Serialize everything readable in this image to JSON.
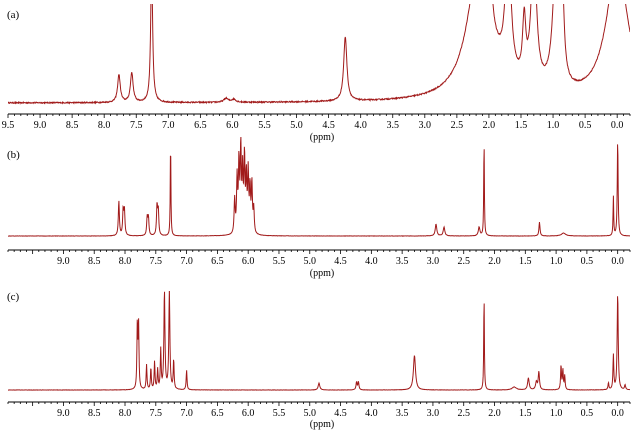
{
  "chart_data": [
    {
      "type": "line",
      "panel_label": "(a)",
      "xlabel": "(ppm)",
      "xlim": [
        9.5,
        -0.2
      ],
      "xticks": [
        "9.5",
        "9.0",
        "8.5",
        "8.0",
        "7.5",
        "7.0",
        "6.5",
        "6.0",
        "5.5",
        "5.0",
        "4.5",
        "4.0",
        "3.5",
        "3.0",
        "2.5",
        "2.0",
        "1.5",
        "1.0",
        "0.5",
        "0.0"
      ],
      "color": "#a11a1a",
      "noise": 0.6,
      "peaks": [
        {
          "x": 7.77,
          "h": 28,
          "w": 0.025
        },
        {
          "x": 7.57,
          "h": 30,
          "w": 0.025
        },
        {
          "x": 7.26,
          "h": 140,
          "w": 0.018
        },
        {
          "x": 6.1,
          "h": 4,
          "w": 0.04
        },
        {
          "x": 5.98,
          "h": 3,
          "w": 0.04
        },
        {
          "x": 4.24,
          "h": 65,
          "w": 0.03
        },
        {
          "x": 2.15,
          "h": 140,
          "w": 0.22
        },
        {
          "x": 2.03,
          "h": 45,
          "w": 0.03
        },
        {
          "x": 1.98,
          "h": 45,
          "w": 0.03
        },
        {
          "x": 1.7,
          "h": 140,
          "w": 0.05
        },
        {
          "x": 1.45,
          "h": 60,
          "w": 0.03
        },
        {
          "x": 1.3,
          "h": 140,
          "w": 0.05
        },
        {
          "x": 0.95,
          "h": 140,
          "w": 0.06
        },
        {
          "x": 0.85,
          "h": 70,
          "w": 0.03
        },
        {
          "x": 0.0,
          "h": 140,
          "w": 0.2
        }
      ]
    },
    {
      "type": "line",
      "panel_label": "(b)",
      "xlabel": "(ppm)",
      "xlim": [
        9.9,
        -0.2
      ],
      "xticks": [
        "9.0",
        "8.5",
        "8.0",
        "7.5",
        "7.0",
        "6.5",
        "6.0",
        "5.5",
        "5.0",
        "4.5",
        "4.0",
        "3.5",
        "3.0",
        "2.5",
        "2.0",
        "1.5",
        "1.0",
        "0.5",
        "0.0"
      ],
      "color": "#a11a1a",
      "noise": 0.15,
      "peaks": [
        {
          "x": 8.1,
          "h": 35,
          "w": 0.01
        },
        {
          "x": 8.03,
          "h": 25,
          "w": 0.01
        },
        {
          "x": 8.01,
          "h": 25,
          "w": 0.01
        },
        {
          "x": 7.64,
          "h": 18,
          "w": 0.01
        },
        {
          "x": 7.62,
          "h": 18,
          "w": 0.01
        },
        {
          "x": 7.48,
          "h": 30,
          "w": 0.01
        },
        {
          "x": 7.46,
          "h": 25,
          "w": 0.01
        },
        {
          "x": 7.26,
          "h": 98,
          "w": 0.006
        },
        {
          "x": 6.22,
          "h": 35,
          "w": 0.01
        },
        {
          "x": 6.18,
          "h": 55,
          "w": 0.01
        },
        {
          "x": 6.15,
          "h": 70,
          "w": 0.01
        },
        {
          "x": 6.12,
          "h": 85,
          "w": 0.01
        },
        {
          "x": 6.09,
          "h": 60,
          "w": 0.01
        },
        {
          "x": 6.06,
          "h": 75,
          "w": 0.01
        },
        {
          "x": 6.03,
          "h": 55,
          "w": 0.01
        },
        {
          "x": 6.0,
          "h": 60,
          "w": 0.01
        },
        {
          "x": 5.97,
          "h": 45,
          "w": 0.01
        },
        {
          "x": 5.94,
          "h": 50,
          "w": 0.01
        },
        {
          "x": 5.91,
          "h": 25,
          "w": 0.01
        },
        {
          "x": 2.95,
          "h": 12,
          "w": 0.015
        },
        {
          "x": 2.82,
          "h": 9,
          "w": 0.015
        },
        {
          "x": 2.25,
          "h": 9,
          "w": 0.015
        },
        {
          "x": 2.17,
          "h": 98,
          "w": 0.006
        },
        {
          "x": 1.27,
          "h": 14,
          "w": 0.01
        },
        {
          "x": 0.88,
          "h": 3,
          "w": 0.04
        },
        {
          "x": 0.07,
          "h": 40,
          "w": 0.006
        },
        {
          "x": 0.0,
          "h": 98,
          "w": 0.008
        }
      ]
    },
    {
      "type": "line",
      "panel_label": "(c)",
      "xlabel": "(ppm)",
      "xlim": [
        9.9,
        -0.2
      ],
      "xticks": [
        "9.0",
        "8.5",
        "8.0",
        "7.5",
        "7.0",
        "6.5",
        "6.0",
        "5.5",
        "5.0",
        "4.5",
        "4.0",
        "3.5",
        "3.0",
        "2.5",
        "2.0",
        "1.5",
        "1.0",
        "0.5",
        "0.0"
      ],
      "color": "#a11a1a",
      "noise": 0.15,
      "peaks": [
        {
          "x": 7.8,
          "h": 65,
          "w": 0.008
        },
        {
          "x": 7.78,
          "h": 65,
          "w": 0.008
        },
        {
          "x": 7.65,
          "h": 25,
          "w": 0.008
        },
        {
          "x": 7.58,
          "h": 22,
          "w": 0.008
        },
        {
          "x": 7.52,
          "h": 28,
          "w": 0.008
        },
        {
          "x": 7.47,
          "h": 20,
          "w": 0.008
        },
        {
          "x": 7.42,
          "h": 40,
          "w": 0.008
        },
        {
          "x": 7.36,
          "h": 100,
          "w": 0.01
        },
        {
          "x": 7.28,
          "h": 100,
          "w": 0.01
        },
        {
          "x": 7.21,
          "h": 30,
          "w": 0.008
        },
        {
          "x": 7.0,
          "h": 20,
          "w": 0.008
        },
        {
          "x": 4.85,
          "h": 7,
          "w": 0.015
        },
        {
          "x": 4.24,
          "h": 8,
          "w": 0.01
        },
        {
          "x": 4.21,
          "h": 8,
          "w": 0.01
        },
        {
          "x": 3.3,
          "h": 35,
          "w": 0.02
        },
        {
          "x": 2.17,
          "h": 98,
          "w": 0.006
        },
        {
          "x": 1.68,
          "h": 3,
          "w": 0.04
        },
        {
          "x": 1.45,
          "h": 12,
          "w": 0.015
        },
        {
          "x": 1.32,
          "h": 8,
          "w": 0.015
        },
        {
          "x": 1.28,
          "h": 18,
          "w": 0.012
        },
        {
          "x": 0.92,
          "h": 25,
          "w": 0.008
        },
        {
          "x": 0.89,
          "h": 20,
          "w": 0.008
        },
        {
          "x": 0.86,
          "h": 14,
          "w": 0.008
        },
        {
          "x": 0.15,
          "h": 7,
          "w": 0.008
        },
        {
          "x": 0.07,
          "h": 35,
          "w": 0.008
        },
        {
          "x": 0.0,
          "h": 98,
          "w": 0.01
        },
        {
          "x": -0.12,
          "h": 5,
          "w": 0.01
        }
      ]
    }
  ]
}
